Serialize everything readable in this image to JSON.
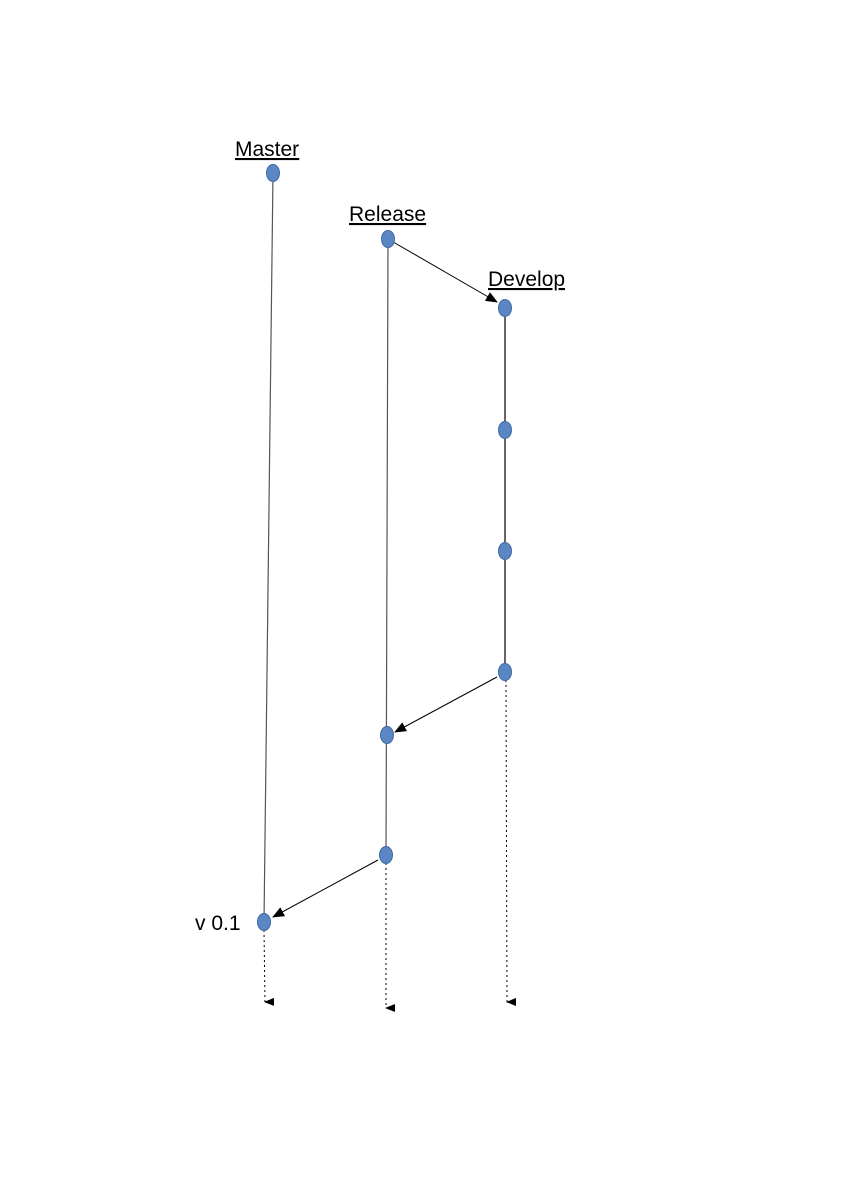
{
  "branches": {
    "master": "Master",
    "release": "Release",
    "develop": "Develop"
  },
  "tags": {
    "version": "v 0.1"
  },
  "colors": {
    "node_fill": "#5b86c4",
    "node_stroke": "#3f6aa5",
    "line": "#000000"
  }
}
